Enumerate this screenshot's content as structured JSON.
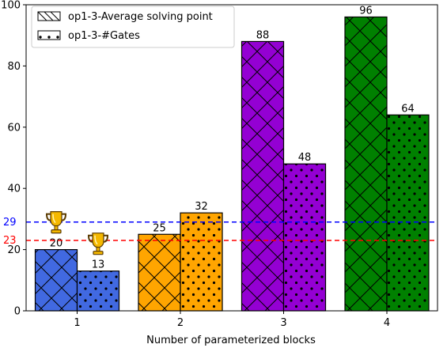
{
  "chart_data": {
    "type": "bar",
    "categories": [
      "1",
      "2",
      "3",
      "4"
    ],
    "xlabel": "Number of parameterized blocks",
    "ylabel": "",
    "ylim": [
      0,
      100
    ],
    "yticks": [
      0,
      20,
      40,
      60,
      80,
      100
    ],
    "grid": false,
    "legend_position": "top-left",
    "series": [
      {
        "name": "op1-3-Average solving point",
        "values": [
          20,
          25,
          88,
          96
        ],
        "pattern": "crosshatch"
      },
      {
        "name": "op1-3-#Gates",
        "values": [
          13,
          32,
          48,
          64
        ],
        "pattern": "dots"
      }
    ],
    "bar_colors": [
      "#4169e1",
      "#ffa500",
      "#9400d3",
      "#008000"
    ],
    "reference_lines": [
      {
        "value": 29,
        "label": "29",
        "color": "#0000ff",
        "style": "dashed"
      },
      {
        "value": 23,
        "label": "23",
        "color": "#ff0000",
        "style": "dashed"
      }
    ],
    "trophy_markers": [
      {
        "category": "1",
        "series": 0,
        "icon": "trophy-icon"
      },
      {
        "category": "1",
        "series": 1,
        "icon": "trophy-icon"
      }
    ]
  }
}
